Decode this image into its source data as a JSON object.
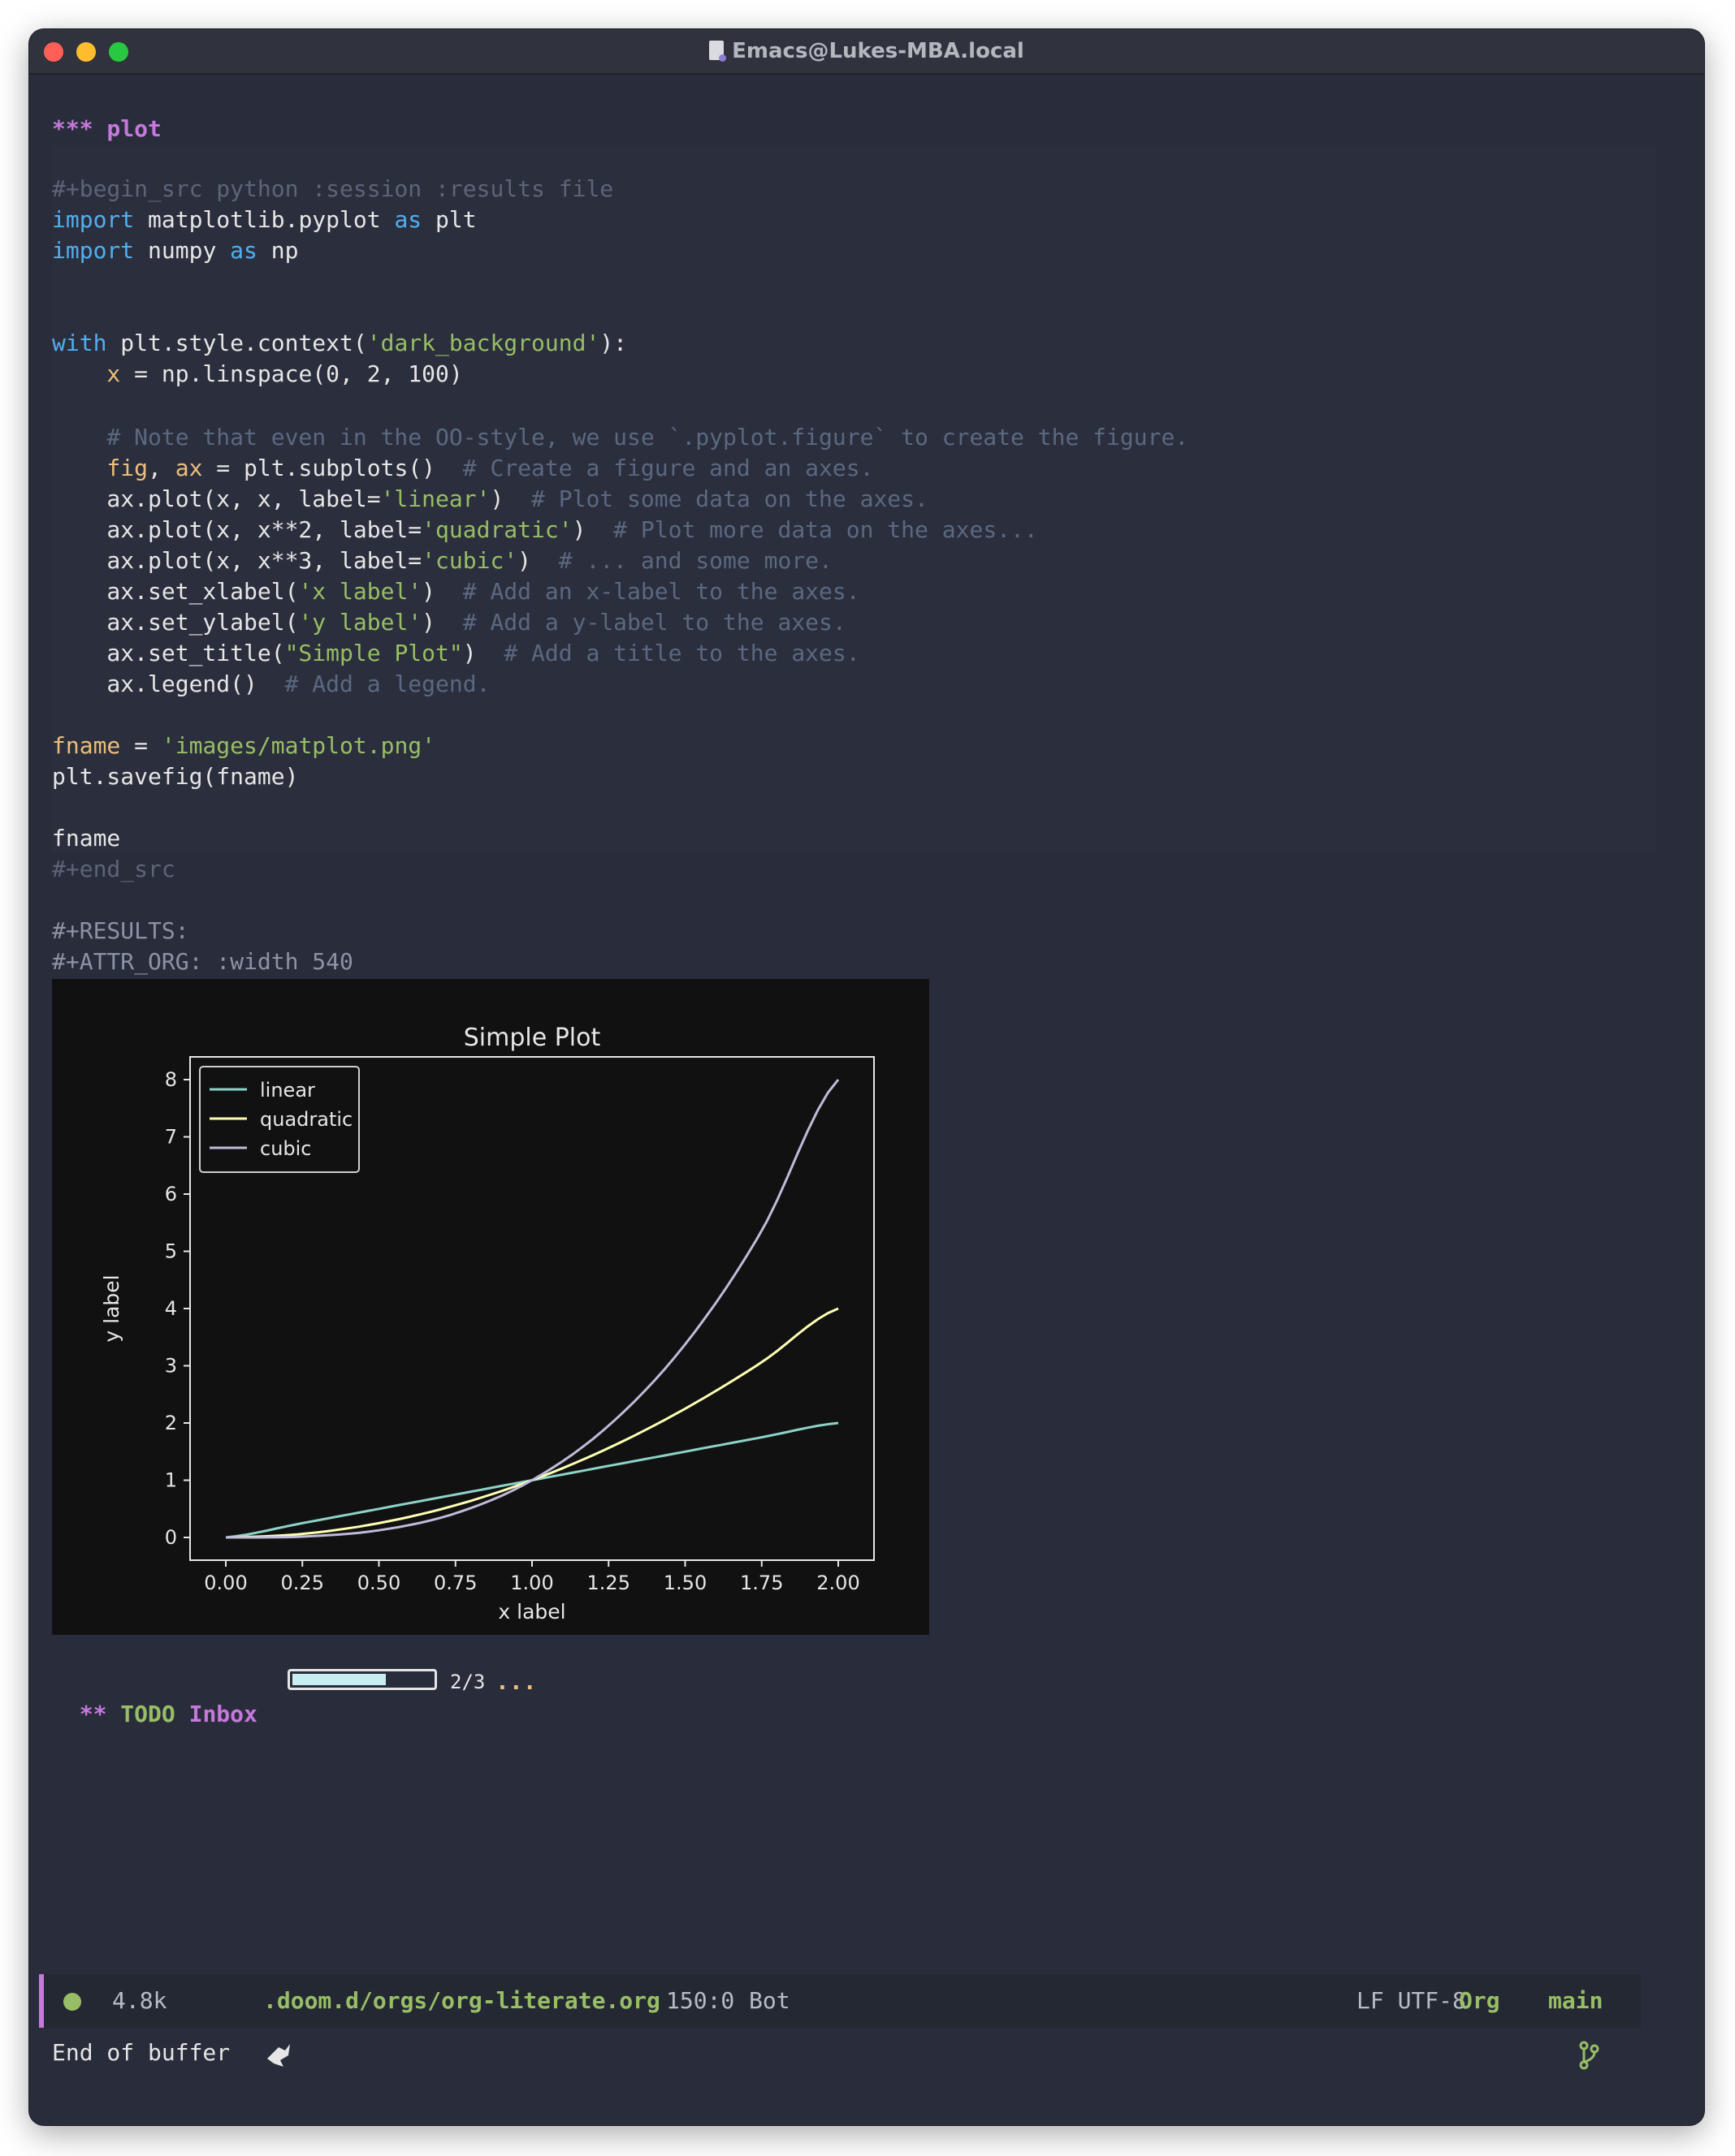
{
  "window": {
    "title": "Emacs@Lukes-MBA.local",
    "title_icon": "document-icon"
  },
  "editor": {
    "heading": "*** plot",
    "begin_src": "#+begin_src python :session :results file",
    "code": {
      "l1_kw": "import",
      "l1_mod": " matplotlib.pyplot ",
      "l1_as": "as",
      "l1_alias": " plt",
      "l2_kw": "import",
      "l2_mod": " numpy ",
      "l2_as": "as",
      "l2_alias": " np",
      "l3_kw": "with",
      "l3_a": " plt.style.context(",
      "l3_str": "'dark_background'",
      "l3_b": "):",
      "l4_var": "    x",
      "l4_rest": " = np.linspace(0, 2, 100)",
      "l5_cmt": "    # Note that even in the OO-style, we use `.pyplot.figure` to create the figure.",
      "l6_v1": "    fig",
      "l6_c": ", ",
      "l6_v2": "ax",
      "l6_rest": " = plt.subplots()  ",
      "l6_cmt": "# Create a figure and an axes.",
      "l7_a": "    ax.plot(x, x, label=",
      "l7_str": "'linear'",
      "l7_b": ")  ",
      "l7_cmt": "# Plot some data on the axes.",
      "l8_a": "    ax.plot(x, x**2, label=",
      "l8_str": "'quadratic'",
      "l8_b": ")  ",
      "l8_cmt": "# Plot more data on the axes...",
      "l9_a": "    ax.plot(x, x**3, label=",
      "l9_str": "'cubic'",
      "l9_b": ")  ",
      "l9_cmt": "# ... and some more.",
      "l10_a": "    ax.set_xlabel(",
      "l10_str": "'x label'",
      "l10_b": ")  ",
      "l10_cmt": "# Add an x-label to the axes.",
      "l11_a": "    ax.set_ylabel(",
      "l11_str": "'y label'",
      "l11_b": ")  ",
      "l11_cmt": "# Add a y-label to the axes.",
      "l12_a": "    ax.set_title(",
      "l12_str": "\"Simple Plot\"",
      "l12_b": ")  ",
      "l12_cmt": "# Add a title to the axes.",
      "l13_a": "    ax.legend()  ",
      "l13_cmt": "# Add a legend.",
      "l14_var": "fname",
      "l14_a": " = ",
      "l14_str": "'images/matplot.png'",
      "l15": "plt.savefig(fname)",
      "l16": "fname"
    },
    "end_src": "#+end_src",
    "results": "#+RESULTS:",
    "attr_org": "#+ATTR_ORG: :width 540"
  },
  "chart_data": {
    "type": "line",
    "title": "Simple Plot",
    "xlabel": "x label",
    "ylabel": "y label",
    "xlim": [
      0,
      2
    ],
    "ylim": [
      0,
      8
    ],
    "xticks": [
      "0.00",
      "0.25",
      "0.50",
      "0.75",
      "1.00",
      "1.25",
      "1.50",
      "1.75",
      "2.00"
    ],
    "yticks": [
      "0",
      "1",
      "2",
      "3",
      "4",
      "5",
      "6",
      "7",
      "8"
    ],
    "x": [
      0,
      0.25,
      0.5,
      0.75,
      1.0,
      1.25,
      1.5,
      1.75,
      2.0
    ],
    "series": [
      {
        "name": "linear",
        "color": "#8dd3c7",
        "values": [
          0,
          0.25,
          0.5,
          0.75,
          1.0,
          1.25,
          1.5,
          1.75,
          2.0
        ]
      },
      {
        "name": "quadratic",
        "color": "#feffb3",
        "values": [
          0,
          0.0625,
          0.25,
          0.5625,
          1.0,
          1.5625,
          2.25,
          3.0625,
          4.0
        ]
      },
      {
        "name": "cubic",
        "color": "#bfbbd9",
        "values": [
          0,
          0.015625,
          0.125,
          0.421875,
          1.0,
          1.953125,
          3.375,
          5.359375,
          8.0
        ]
      }
    ],
    "legend": "top-left",
    "grid": false,
    "background": "#111111"
  },
  "todo": {
    "stars": "**",
    "keyword": "TODO",
    "title": "Inbox",
    "progress": 0.67,
    "progress_text": "2/3",
    "ellipsis": "..."
  },
  "modeline": {
    "size": "4.8k",
    "path": ".doom.d/orgs/org-literate.org",
    "position": "150:0",
    "scroll": "Bot",
    "encoding": "LF UTF-8",
    "mode": "Org",
    "branch": "main",
    "status_icon": "modified-dot-icon",
    "file_icon": "doom-file-icon",
    "branch_icon": "git-branch-icon"
  },
  "minibuffer": "End of buffer"
}
